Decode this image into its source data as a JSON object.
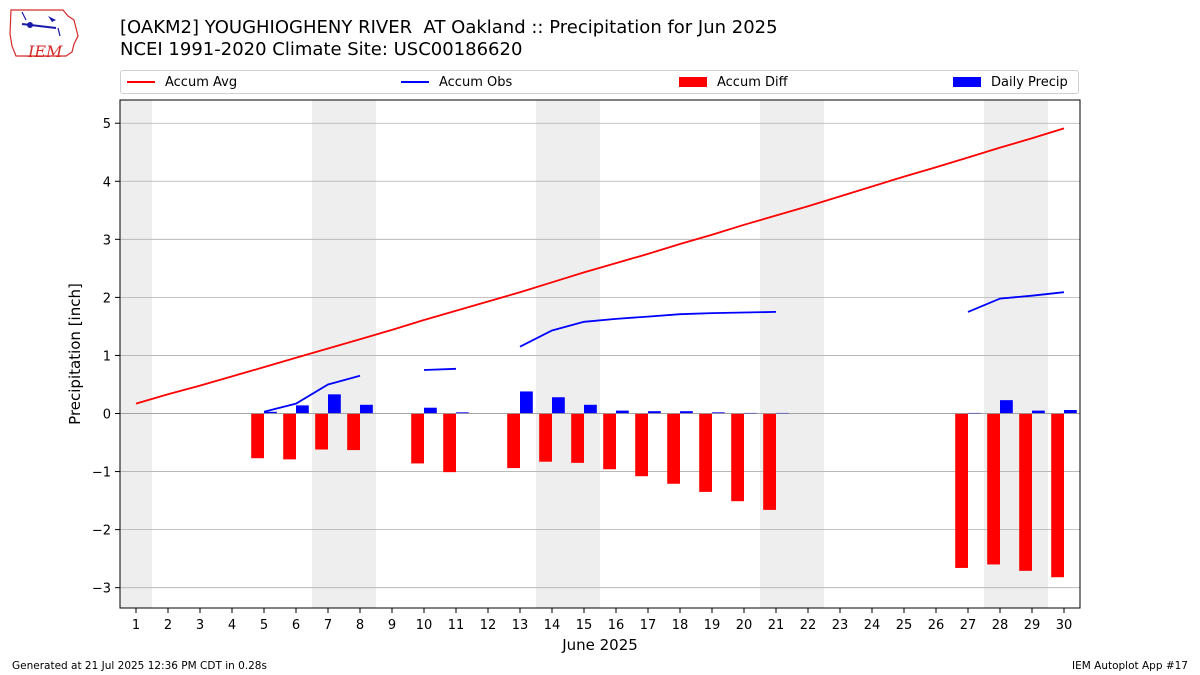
{
  "header": {
    "title_line1": "[OAKM2] YOUGHIOGHENY RIVER  AT Oakland :: Precipitation for Jun 2025",
    "title_line2": "NCEI 1991-2020 Climate Site: USC00186620"
  },
  "logo": {
    "text": "IEM"
  },
  "footer": {
    "left": "Generated at 21 Jul 2025 12:36 PM CDT in 0.28s",
    "right": "IEM Autoplot App #17"
  },
  "colors": {
    "accum_avg": "#ff0000",
    "accum_obs": "#0000ff",
    "accum_diff": "#ff0000",
    "daily_precip": "#0000ff",
    "weekend_shade": "#eeeeee",
    "grid": "#b0b0b0"
  },
  "chart_data": {
    "type": "bar",
    "xlabel": "June 2025",
    "ylabel": "Precipitation [inch]",
    "xlim": [
      0.5,
      30.5
    ],
    "ylim": [
      -3.35,
      5.4
    ],
    "yticks": [
      -3,
      -2,
      -1,
      0,
      1,
      2,
      3,
      4,
      5
    ],
    "ytick_labels": [
      "−3",
      "−2",
      "−1",
      "0",
      "1",
      "2",
      "3",
      "4",
      "5"
    ],
    "x": [
      1,
      2,
      3,
      4,
      5,
      6,
      7,
      8,
      9,
      10,
      11,
      12,
      13,
      14,
      15,
      16,
      17,
      18,
      19,
      20,
      21,
      22,
      23,
      24,
      25,
      26,
      27,
      28,
      29,
      30
    ],
    "x_tick_labels": [
      "1",
      "2",
      "3",
      "4",
      "5",
      "6",
      "7",
      "8",
      "9",
      "10",
      "11",
      "12",
      "13",
      "14",
      "15",
      "16",
      "17",
      "18",
      "19",
      "20",
      "21",
      "22",
      "23",
      "24",
      "25",
      "26",
      "27",
      "28",
      "29",
      "30"
    ],
    "grid": true,
    "legend_position": "top",
    "weekend_shading": [
      [
        0.5,
        1.5
      ],
      [
        6.5,
        8.5
      ],
      [
        13.5,
        15.5
      ],
      [
        20.5,
        22.5
      ],
      [
        27.5,
        29.5
      ]
    ],
    "series": [
      {
        "name": "Accum Avg",
        "type": "line",
        "values": [
          0.17,
          0.33,
          0.48,
          0.64,
          0.8,
          0.96,
          1.12,
          1.28,
          1.44,
          1.61,
          1.77,
          1.93,
          2.09,
          2.26,
          2.43,
          2.59,
          2.75,
          2.92,
          3.08,
          3.25,
          3.41,
          3.57,
          3.74,
          3.91,
          4.08,
          4.24,
          4.41,
          4.58,
          4.74,
          4.91
        ]
      },
      {
        "name": "Accum Obs",
        "type": "line",
        "values": [
          null,
          null,
          null,
          null,
          0.03,
          0.17,
          0.5,
          0.65,
          null,
          0.75,
          0.77,
          null,
          1.15,
          1.43,
          1.58,
          1.63,
          1.67,
          1.71,
          1.73,
          1.74,
          1.75,
          null,
          null,
          null,
          null,
          null,
          1.75,
          1.98,
          2.03,
          2.09
        ]
      },
      {
        "name": "Accum Diff",
        "type": "bar",
        "values": [
          null,
          null,
          null,
          null,
          -0.77,
          -0.79,
          -0.62,
          -0.63,
          null,
          -0.86,
          -1.01,
          null,
          -0.94,
          -0.83,
          -0.85,
          -0.96,
          -1.08,
          -1.21,
          -1.35,
          -1.51,
          -1.66,
          null,
          null,
          null,
          null,
          null,
          -2.66,
          -2.6,
          -2.71,
          -2.82
        ]
      },
      {
        "name": "Daily Precip",
        "type": "bar",
        "values": [
          null,
          null,
          null,
          null,
          0.03,
          0.14,
          0.33,
          0.15,
          null,
          0.1,
          0.02,
          null,
          0.38,
          0.28,
          0.15,
          0.05,
          0.04,
          0.04,
          0.02,
          0.01,
          0.01,
          null,
          null,
          null,
          null,
          null,
          0.01,
          0.23,
          0.05,
          0.06
        ]
      }
    ]
  }
}
